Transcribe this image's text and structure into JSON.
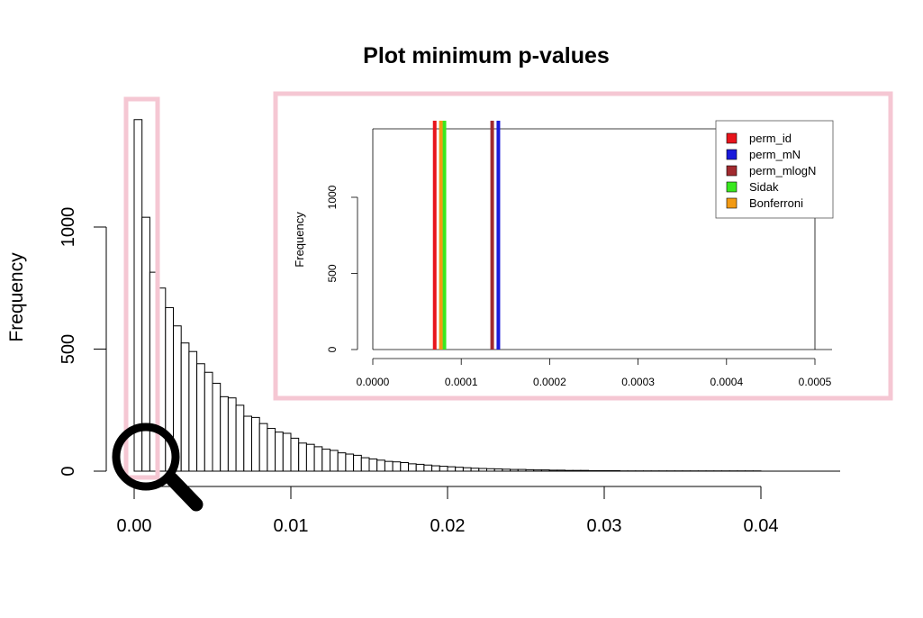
{
  "chart_data": [
    {
      "type": "bar",
      "title": "Plot minimum p-values",
      "xlabel": "",
      "ylabel": "Frequency",
      "xlim": [
        0,
        0.045
      ],
      "ylim": [
        0,
        1450
      ],
      "x_ticks": [
        "0.00",
        "0.01",
        "0.02",
        "0.03",
        "0.04"
      ],
      "y_ticks": [
        "0",
        "500",
        "1000"
      ],
      "bin_width": 0.0005,
      "values": [
        1440,
        1040,
        815,
        750,
        670,
        595,
        525,
        490,
        440,
        405,
        360,
        305,
        300,
        270,
        225,
        220,
        195,
        175,
        160,
        155,
        135,
        115,
        110,
        100,
        90,
        85,
        75,
        70,
        65,
        55,
        50,
        45,
        40,
        38,
        35,
        30,
        28,
        25,
        22,
        20,
        18,
        16,
        14,
        12,
        11,
        10,
        9,
        8,
        7,
        7,
        6,
        5,
        5,
        4,
        4,
        3,
        3,
        3,
        2,
        2,
        2,
        2,
        1,
        1,
        1,
        1,
        1,
        1,
        1,
        1,
        1,
        1,
        1,
        1,
        1,
        1,
        1,
        1,
        1,
        1,
        0,
        0,
        0,
        0,
        0,
        0,
        0,
        0,
        0,
        0
      ]
    },
    {
      "type": "line",
      "xlabel": "",
      "ylabel": "Frequency",
      "xlim": [
        0,
        0.0005
      ],
      "ylim": [
        0,
        1450
      ],
      "x_ticks": [
        "0.0000",
        "0.0001",
        "0.0002",
        "0.0003",
        "0.0004",
        "0.0005"
      ],
      "y_ticks": [
        "0",
        "500",
        "1000"
      ],
      "legend_position": "top-right",
      "series": [
        {
          "name": "perm_id",
          "x": 7e-05,
          "color": "#e8141b"
        },
        {
          "name": "perm_mN",
          "x": 0.000142,
          "color": "#1a1adb"
        },
        {
          "name": "perm_mlogN",
          "x": 0.000135,
          "color": "#a12a2f"
        },
        {
          "name": "Sidak",
          "x": 8.1e-05,
          "color": "#39e81f"
        },
        {
          "name": "Bonferroni",
          "x": 7.7e-05,
          "color": "#f29a14"
        }
      ]
    }
  ],
  "colors": {
    "highlight": "#f5c7d3",
    "bar_fill": "#ffffff",
    "bar_stroke": "#000000"
  },
  "icons": {
    "zoom": "magnifier-icon"
  }
}
